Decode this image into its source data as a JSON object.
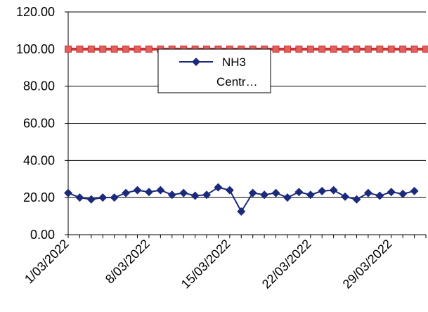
{
  "chart_data": {
    "type": "line",
    "title": "",
    "xlabel": "",
    "ylabel": "",
    "x": [
      "1/03/2022",
      "2/03/2022",
      "3/03/2022",
      "4/03/2022",
      "5/03/2022",
      "6/03/2022",
      "7/03/2022",
      "8/03/2022",
      "9/03/2022",
      "10/03/2022",
      "11/03/2022",
      "12/03/2022",
      "13/03/2022",
      "14/03/2022",
      "15/03/2022",
      "16/03/2022",
      "17/03/2022",
      "18/03/2022",
      "19/03/2022",
      "20/03/2022",
      "21/03/2022",
      "22/03/2022",
      "23/03/2022",
      "24/03/2022",
      "25/03/2022",
      "26/03/2022",
      "27/03/2022",
      "28/03/2022",
      "29/03/2022",
      "30/03/2022",
      "31/03/2022",
      "1/04/2022"
    ],
    "x_tick_labels": [
      "1/03/2022",
      "8/03/2022",
      "15/03/2022",
      "22/03/2022",
      "29/03/2022"
    ],
    "y_tick_labels": [
      "0.00",
      "20.00",
      "40.00",
      "60.00",
      "80.00",
      "100.00",
      "120.00"
    ],
    "ylim": [
      0,
      120
    ],
    "grid": "horizontal",
    "legend_position": "top-center",
    "series": [
      {
        "name": "NH3",
        "color": "#1b2a7a",
        "marker": "diamond",
        "values": [
          22.5,
          20.0,
          19.0,
          20.0,
          20.0,
          22.5,
          24.0,
          23.0,
          24.0,
          21.5,
          22.5,
          21.0,
          21.5,
          25.5,
          24.0,
          12.5,
          22.5,
          21.5,
          22.5,
          20.0,
          23.0,
          21.5,
          23.5,
          24.0,
          20.5,
          19.0,
          22.5,
          21.0,
          23.0,
          22.0,
          23.5,
          null
        ]
      },
      {
        "name": "Centr…",
        "color": "#cc3333",
        "marker": "square",
        "values": [
          100,
          100,
          100,
          100,
          100,
          100,
          100,
          100,
          100,
          100,
          100,
          100,
          100,
          100,
          100,
          100,
          100,
          100,
          100,
          100,
          100,
          100,
          100,
          100,
          100,
          100,
          100,
          100,
          100,
          100,
          100,
          100
        ]
      }
    ]
  }
}
